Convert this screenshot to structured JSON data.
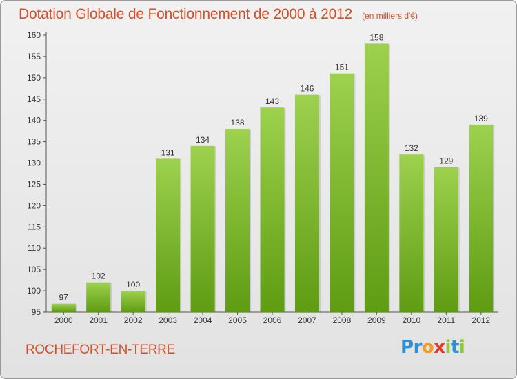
{
  "header": {
    "title": "Dotation Globale de Fonctionnement de 2000 à 2012",
    "unit": "(en milliers d'€)"
  },
  "footer": {
    "commune": "ROCHEFORT-EN-TERRE",
    "logo": [
      "P",
      "r",
      "o",
      "x",
      "i",
      "t",
      "i"
    ],
    "logo_colors": [
      "#2e8fd4",
      "#2e8fd4",
      "#f39b1e",
      "#e23a2a",
      "#8dc63f",
      "#2e8fd4",
      "#8dc63f"
    ]
  },
  "chart_data": {
    "type": "bar",
    "title": "Dotation Globale de Fonctionnement de 2000 à 2012",
    "xlabel": "",
    "ylabel": "",
    "categories": [
      "2000",
      "2001",
      "2002",
      "2003",
      "2004",
      "2005",
      "2006",
      "2007",
      "2008",
      "2009",
      "2010",
      "2011",
      "2012"
    ],
    "values": [
      97,
      102,
      100,
      131,
      134,
      138,
      143,
      146,
      151,
      158,
      132,
      129,
      139
    ],
    "ylim": [
      95,
      160
    ],
    "yticks": [
      95,
      100,
      105,
      110,
      115,
      120,
      125,
      130,
      135,
      140,
      145,
      150,
      155,
      160
    ],
    "grid": false,
    "bar_color_top": "#9dd14e",
    "bar_color_bottom": "#5e9c12"
  }
}
